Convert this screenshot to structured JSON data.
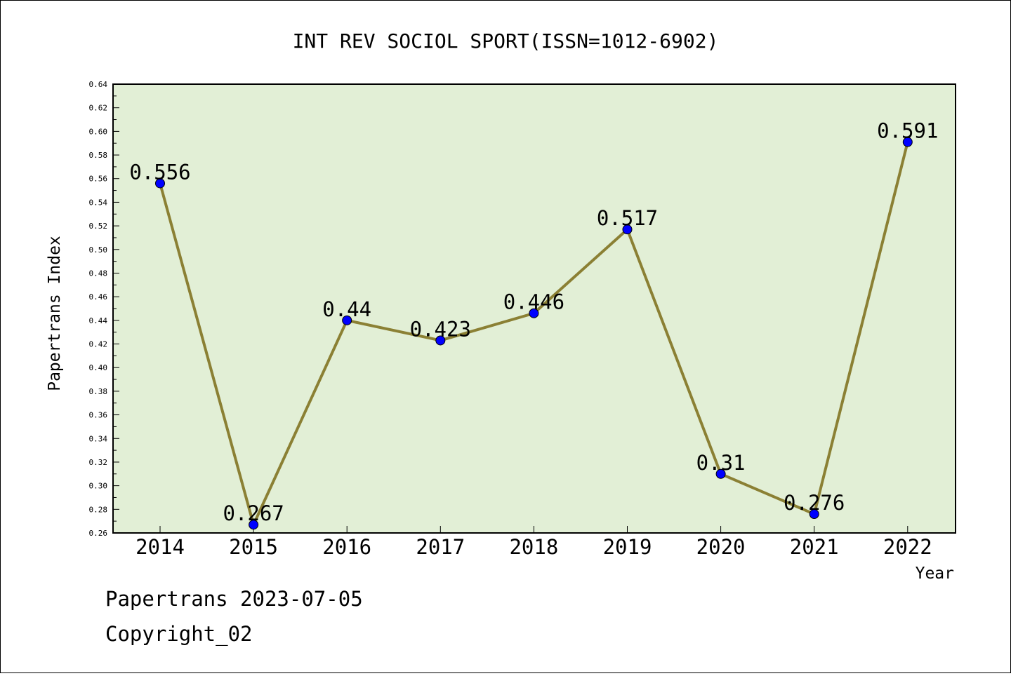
{
  "chart_data": {
    "type": "line",
    "title": "INT REV SOCIOL SPORT(ISSN=1012-6902)",
    "xlabel": "Year",
    "ylabel": "Papertrans Index",
    "categories": [
      "2014",
      "2015",
      "2016",
      "2017",
      "2018",
      "2019",
      "2020",
      "2021",
      "2022"
    ],
    "series": [
      {
        "values": [
          0.556,
          0.267,
          0.44,
          0.423,
          0.446,
          0.517,
          0.31,
          0.276,
          0.591
        ],
        "labels": [
          "0.556",
          "0.267",
          "0.44",
          "0.423",
          "0.446",
          "0.517",
          "0.31",
          "0.276",
          "0.591"
        ]
      }
    ],
    "ylim": [
      0.26,
      0.64
    ],
    "yticks": [
      "0.26",
      "0.28",
      "0.30",
      "0.32",
      "0.34",
      "0.36",
      "0.38",
      "0.40",
      "0.42",
      "0.44",
      "0.46",
      "0.48",
      "0.50",
      "0.52",
      "0.54",
      "0.56",
      "0.58",
      "0.60",
      "0.62",
      "0.64"
    ],
    "grid": false,
    "colors": {
      "plot_bg": "#e2efd6",
      "line": "#8b8034",
      "marker": "#0000ff"
    }
  },
  "footer": {
    "line1": "Papertrans 2023-07-05",
    "line2": "Copyright_02"
  }
}
